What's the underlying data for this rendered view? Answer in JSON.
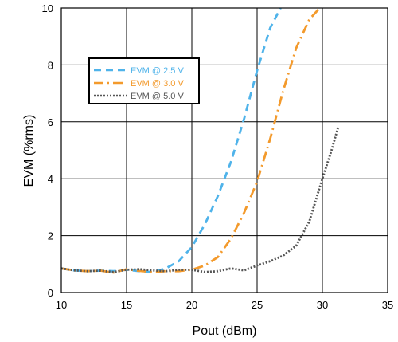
{
  "chart_data": {
    "type": "line",
    "title": "",
    "xlabel": "Pout (dBm)",
    "ylabel": "EVM (%rms)",
    "xlim": [
      10,
      35
    ],
    "ylim": [
      0,
      10
    ],
    "x_ticks": [
      "10",
      "15",
      "20",
      "25",
      "30",
      "35"
    ],
    "y_ticks": [
      "0",
      "2",
      "4",
      "6",
      "8",
      "10"
    ],
    "grid": true,
    "legend_position": "upper-left",
    "series": [
      {
        "name": "EVM @ 2.5 V",
        "color": "#4fb3ea",
        "dash": "long-dash",
        "x": [
          10,
          11,
          12,
          13,
          14,
          15,
          16,
          17,
          18,
          19,
          20,
          21,
          22,
          23,
          24,
          25,
          26,
          26.8
        ],
        "y": [
          0.85,
          0.78,
          0.75,
          0.77,
          0.75,
          0.8,
          0.75,
          0.72,
          0.85,
          1.1,
          1.6,
          2.4,
          3.4,
          4.6,
          6.1,
          7.8,
          9.3,
          10.0
        ]
      },
      {
        "name": "EVM @ 3.0 V",
        "color": "#f39a2c",
        "dash": "dash-dot",
        "x": [
          10,
          11,
          12,
          13,
          14,
          15,
          16,
          17,
          18,
          19,
          20,
          21,
          22,
          23,
          24,
          25,
          26,
          27,
          28,
          29,
          29.8
        ],
        "y": [
          0.85,
          0.78,
          0.75,
          0.77,
          0.7,
          0.82,
          0.76,
          0.72,
          0.75,
          0.75,
          0.8,
          0.95,
          1.25,
          1.9,
          2.8,
          3.9,
          5.4,
          7.1,
          8.6,
          9.6,
          10.0
        ]
      },
      {
        "name": "EVM @ 5.0 V",
        "color": "#555555",
        "dash": "dotted",
        "x": [
          10,
          11,
          12,
          13,
          14,
          15,
          16,
          17,
          18,
          19,
          20,
          21,
          22,
          23,
          24,
          25,
          26,
          27,
          28,
          29,
          30,
          30.7,
          31.2
        ],
        "y": [
          0.85,
          0.78,
          0.75,
          0.77,
          0.72,
          0.8,
          0.82,
          0.78,
          0.75,
          0.8,
          0.8,
          0.72,
          0.75,
          0.85,
          0.78,
          0.95,
          1.1,
          1.3,
          1.65,
          2.5,
          4.0,
          5.0,
          5.8
        ]
      }
    ]
  }
}
